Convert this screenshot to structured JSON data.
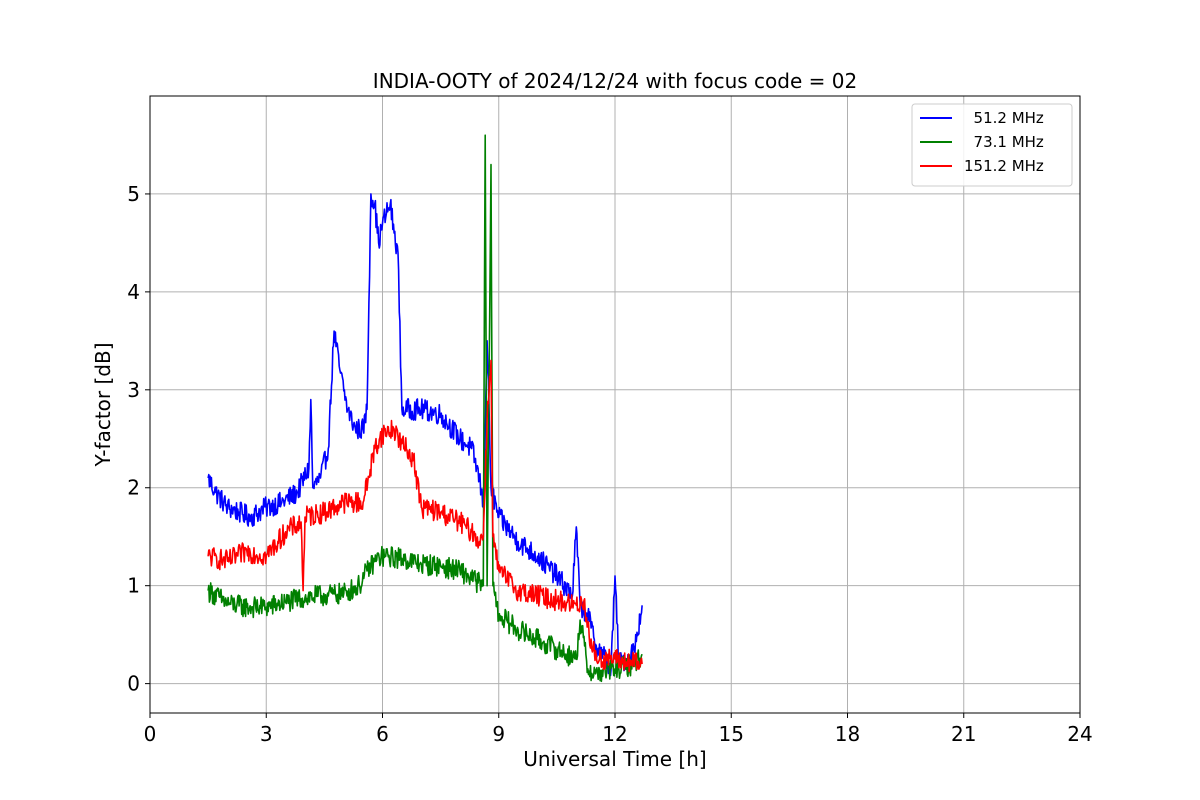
{
  "chart_data": {
    "type": "line",
    "title": "INDIA-OOTY of 2024/12/24 with focus code = 02",
    "xlabel": "Universal Time [h]",
    "ylabel": "Y-factor [dB]",
    "xlim": [
      0,
      24
    ],
    "ylim": [
      -0.3,
      6.0
    ],
    "xticks": [
      0,
      3,
      6,
      9,
      12,
      15,
      18,
      21,
      24
    ],
    "yticks": [
      0,
      1,
      2,
      3,
      4,
      5
    ],
    "grid": true,
    "legend_position": "top-right",
    "series": [
      {
        "name": "  51.2 MHz",
        "color": "#0000ff",
        "x": [
          1.5,
          1.7,
          2.0,
          2.3,
          2.6,
          3.0,
          3.4,
          3.8,
          4.1,
          4.15,
          4.2,
          4.4,
          4.6,
          4.75,
          4.9,
          5.1,
          5.3,
          5.5,
          5.6,
          5.7,
          5.8,
          5.9,
          6.0,
          6.1,
          6.2,
          6.3,
          6.4,
          6.5,
          6.6,
          7.0,
          7.5,
          8.0,
          8.3,
          8.5,
          8.6,
          8.7,
          8.8,
          9.0,
          9.5,
          10.0,
          10.5,
          10.9,
          11.0,
          11.1,
          11.3,
          11.5,
          11.7,
          11.9,
          12.0,
          12.1,
          12.3,
          12.5,
          12.7
        ],
        "y": [
          2.1,
          1.95,
          1.8,
          1.75,
          1.7,
          1.8,
          1.85,
          1.95,
          2.2,
          2.9,
          2.0,
          2.1,
          2.4,
          3.6,
          3.2,
          2.8,
          2.6,
          2.6,
          2.8,
          5.0,
          4.9,
          4.5,
          4.7,
          4.8,
          4.9,
          4.6,
          4.4,
          2.8,
          2.8,
          2.8,
          2.75,
          2.5,
          2.4,
          2.1,
          1.8,
          3.5,
          2.0,
          1.7,
          1.45,
          1.3,
          1.1,
          0.9,
          1.6,
          0.8,
          0.7,
          0.4,
          0.3,
          0.15,
          1.1,
          0.2,
          0.25,
          0.35,
          0.8
        ]
      },
      {
        "name": "  73.1 MHz",
        "color": "#008000",
        "x": [
          1.5,
          2.0,
          2.5,
          3.0,
          3.5,
          4.0,
          4.5,
          5.0,
          5.4,
          5.6,
          5.8,
          6.0,
          6.5,
          7.0,
          7.5,
          8.0,
          8.4,
          8.6,
          8.65,
          8.7,
          8.8,
          8.85,
          8.9,
          9.0,
          9.5,
          10.0,
          10.5,
          11.0,
          11.1,
          11.3,
          11.5,
          12.0,
          12.5,
          12.7
        ],
        "y": [
          0.95,
          0.82,
          0.78,
          0.78,
          0.83,
          0.88,
          0.9,
          0.92,
          1.0,
          1.15,
          1.25,
          1.3,
          1.28,
          1.22,
          1.2,
          1.15,
          1.05,
          1.0,
          5.6,
          1.0,
          5.3,
          1.0,
          0.9,
          0.7,
          0.55,
          0.45,
          0.35,
          0.25,
          0.65,
          0.15,
          0.1,
          0.15,
          0.2,
          0.3
        ]
      },
      {
        "name": "151.2 MHz",
        "color": "#ff0000",
        "x": [
          1.5,
          2.0,
          2.5,
          3.0,
          3.5,
          3.9,
          3.95,
          4.0,
          4.5,
          5.0,
          5.5,
          5.8,
          6.0,
          6.3,
          6.5,
          6.8,
          7.0,
          7.5,
          8.0,
          8.3,
          8.5,
          8.6,
          8.7,
          8.8,
          8.85,
          9.0,
          9.5,
          10.0,
          10.5,
          11.0,
          11.2,
          11.4,
          11.6,
          12.0,
          12.3,
          12.7
        ],
        "y": [
          1.3,
          1.25,
          1.35,
          1.3,
          1.55,
          1.65,
          0.95,
          1.7,
          1.75,
          1.85,
          1.85,
          2.4,
          2.55,
          2.6,
          2.45,
          2.3,
          1.8,
          1.75,
          1.65,
          1.55,
          1.45,
          1.5,
          2.7,
          3.3,
          1.5,
          1.15,
          0.95,
          0.9,
          0.85,
          0.8,
          0.85,
          0.35,
          0.25,
          0.25,
          0.22,
          0.2
        ]
      }
    ]
  }
}
